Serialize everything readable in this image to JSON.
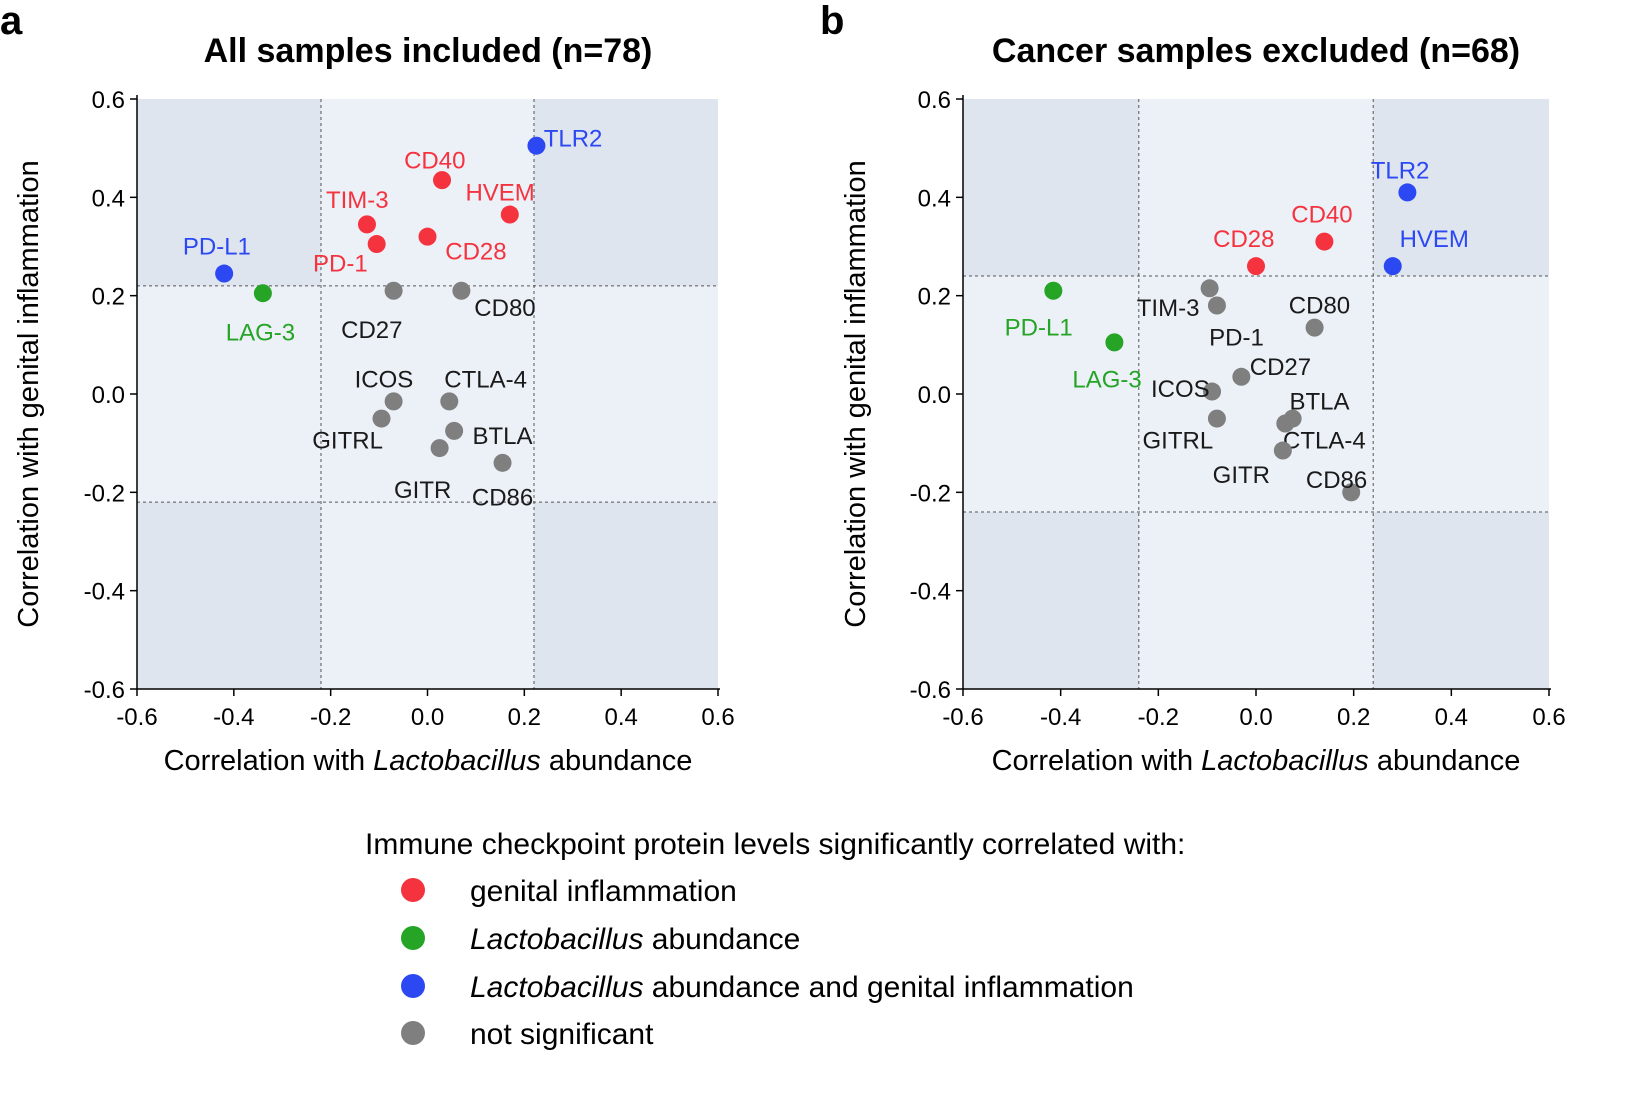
{
  "colors": {
    "red": "#f5333f",
    "green": "#25a426",
    "blue": "#2b48f3",
    "gray": "#7f7f7f",
    "black": "#1a1a1a",
    "shade_dark": "#dfe5ef",
    "shade_light": "#ecf1f8"
  },
  "chart_data": [
    {
      "type": "scatter",
      "letter": "a",
      "title": "All samples included (n=78)",
      "xlabel_pre": "Correlation with ",
      "xlabel_italic": "Lactobacillus",
      "xlabel_post": " abundance",
      "ylabel": "Correlation with genital inflammation",
      "xlim": [
        -0.6,
        0.6
      ],
      "ylim": [
        -0.6,
        0.6
      ],
      "xticks": [
        "-0.6",
        "-0.4",
        "-0.2",
        "0.0",
        "0.2",
        "0.4",
        "0.6"
      ],
      "yticks": [
        "0.6",
        "0.4",
        "0.2",
        "0.0",
        "-0.2",
        "-0.4",
        "-0.6"
      ],
      "threshold": 0.22,
      "points": [
        {
          "label": "TLR2",
          "x": 0.225,
          "y": 0.505,
          "cat": "blue",
          "lx": 0.24,
          "ly": 0.52,
          "anchor": "start"
        },
        {
          "label": "CD40",
          "x": 0.03,
          "y": 0.435,
          "cat": "red",
          "lx": 0.015,
          "ly": 0.475,
          "anchor": "middle"
        },
        {
          "label": "HVEM",
          "x": 0.17,
          "y": 0.365,
          "cat": "red",
          "lx": 0.15,
          "ly": 0.41,
          "anchor": "middle"
        },
        {
          "label": "TIM-3",
          "x": -0.125,
          "y": 0.345,
          "cat": "red",
          "lx": -0.145,
          "ly": 0.395,
          "anchor": "middle"
        },
        {
          "label": "CD28",
          "x": 0.0,
          "y": 0.32,
          "cat": "red",
          "lx": 0.1,
          "ly": 0.29,
          "anchor": "middle"
        },
        {
          "label": "PD-1",
          "x": -0.105,
          "y": 0.305,
          "cat": "red",
          "lx": -0.18,
          "ly": 0.265,
          "anchor": "middle"
        },
        {
          "label": "PD-L1",
          "x": -0.42,
          "y": 0.245,
          "cat": "blue",
          "lx": -0.435,
          "ly": 0.3,
          "anchor": "middle"
        },
        {
          "label": "LAG-3",
          "x": -0.34,
          "y": 0.205,
          "cat": "green",
          "lx": -0.345,
          "ly": 0.125,
          "anchor": "middle"
        },
        {
          "label": "CD27",
          "x": -0.07,
          "y": 0.21,
          "cat": "gray",
          "lx": -0.115,
          "ly": 0.13,
          "anchor": "middle"
        },
        {
          "label": "CD80",
          "x": 0.07,
          "y": 0.21,
          "cat": "gray",
          "lx": 0.16,
          "ly": 0.175,
          "anchor": "middle"
        },
        {
          "label": "ICOS",
          "x": -0.07,
          "y": -0.015,
          "cat": "gray",
          "lx": -0.09,
          "ly": 0.03,
          "anchor": "middle"
        },
        {
          "label": "CTLA-4",
          "x": 0.045,
          "y": -0.015,
          "cat": "gray",
          "lx": 0.12,
          "ly": 0.03,
          "anchor": "middle"
        },
        {
          "label": "GITRL",
          "x": -0.095,
          "y": -0.05,
          "cat": "gray",
          "lx": -0.165,
          "ly": -0.095,
          "anchor": "middle"
        },
        {
          "label": "BTLA",
          "x": 0.055,
          "y": -0.075,
          "cat": "gray",
          "lx": 0.155,
          "ly": -0.085,
          "anchor": "middle"
        },
        {
          "label": "GITR",
          "x": 0.025,
          "y": -0.11,
          "cat": "gray",
          "lx": -0.01,
          "ly": -0.195,
          "anchor": "middle"
        },
        {
          "label": "CD86",
          "x": 0.155,
          "y": -0.14,
          "cat": "gray",
          "lx": 0.155,
          "ly": -0.21,
          "anchor": "middle"
        }
      ]
    },
    {
      "type": "scatter",
      "letter": "b",
      "title": "Cancer samples excluded (n=68)",
      "xlabel_pre": "Correlation with ",
      "xlabel_italic": "Lactobacillus",
      "xlabel_post": " abundance",
      "ylabel": "Correlation with genital inflammation",
      "xlim": [
        -0.6,
        0.6
      ],
      "ylim": [
        -0.6,
        0.6
      ],
      "xticks": [
        "-0.6",
        "-0.4",
        "-0.2",
        "0.0",
        "0.2",
        "0.4",
        "0.6"
      ],
      "yticks": [
        "0.6",
        "0.4",
        "0.2",
        "0.0",
        "-0.2",
        "-0.4",
        "-0.6"
      ],
      "threshold": 0.24,
      "points": [
        {
          "label": "TLR2",
          "x": 0.31,
          "y": 0.41,
          "cat": "blue",
          "lx": 0.295,
          "ly": 0.455,
          "anchor": "middle"
        },
        {
          "label": "CD40",
          "x": 0.14,
          "y": 0.31,
          "cat": "red",
          "lx": 0.135,
          "ly": 0.365,
          "anchor": "middle"
        },
        {
          "label": "CD28",
          "x": 0.0,
          "y": 0.26,
          "cat": "red",
          "lx": -0.025,
          "ly": 0.315,
          "anchor": "middle"
        },
        {
          "label": "HVEM",
          "x": 0.28,
          "y": 0.26,
          "cat": "blue",
          "lx": 0.365,
          "ly": 0.315,
          "anchor": "middle"
        },
        {
          "label": "TIM-3",
          "x": -0.095,
          "y": 0.215,
          "cat": "gray",
          "lx": -0.18,
          "ly": 0.175,
          "anchor": "middle"
        },
        {
          "label": "PD-L1",
          "x": -0.415,
          "y": 0.21,
          "cat": "green",
          "lx": -0.445,
          "ly": 0.135,
          "anchor": "middle"
        },
        {
          "label": "PD-1",
          "x": -0.08,
          "y": 0.18,
          "cat": "gray",
          "lx": -0.04,
          "ly": 0.115,
          "anchor": "middle"
        },
        {
          "label": "CD80",
          "x": 0.12,
          "y": 0.135,
          "cat": "gray",
          "lx": 0.13,
          "ly": 0.18,
          "anchor": "middle"
        },
        {
          "label": "LAG-3",
          "x": -0.29,
          "y": 0.105,
          "cat": "green",
          "lx": -0.305,
          "ly": 0.03,
          "anchor": "middle"
        },
        {
          "label": "CD27",
          "x": -0.03,
          "y": 0.035,
          "cat": "gray",
          "lx": 0.05,
          "ly": 0.055,
          "anchor": "middle"
        },
        {
          "label": "ICOS",
          "x": -0.09,
          "y": 0.005,
          "cat": "gray",
          "lx": -0.155,
          "ly": 0.01,
          "anchor": "middle"
        },
        {
          "label": "BTLA",
          "x": 0.075,
          "y": -0.05,
          "cat": "gray",
          "lx": 0.13,
          "ly": -0.015,
          "anchor": "middle"
        },
        {
          "label": "GITRL",
          "x": -0.08,
          "y": -0.05,
          "cat": "gray",
          "lx": -0.16,
          "ly": -0.095,
          "anchor": "middle"
        },
        {
          "label": "CTLA-4",
          "x": 0.06,
          "y": -0.06,
          "cat": "gray",
          "lx": 0.14,
          "ly": -0.095,
          "anchor": "middle"
        },
        {
          "label": "GITR",
          "x": 0.055,
          "y": -0.115,
          "cat": "gray",
          "lx": -0.03,
          "ly": -0.165,
          "anchor": "middle"
        },
        {
          "label": "CD86",
          "x": 0.195,
          "y": -0.2,
          "cat": "gray",
          "lx": 0.165,
          "ly": -0.175,
          "anchor": "middle"
        }
      ]
    }
  ],
  "legend": {
    "title": "Immune checkpoint protein levels significantly correlated with:",
    "items": [
      {
        "cat": "red",
        "parts": [
          {
            "text": "genital inflammation",
            "italic": false
          }
        ]
      },
      {
        "cat": "green",
        "parts": [
          {
            "text": "Lactobacillus",
            "italic": true
          },
          {
            "text": " abundance",
            "italic": false
          }
        ]
      },
      {
        "cat": "blue",
        "parts": [
          {
            "text": "Lactobacillus",
            "italic": true
          },
          {
            "text": " abundance and genital inflammation",
            "italic": false
          }
        ]
      },
      {
        "cat": "gray",
        "parts": [
          {
            "text": "not significant",
            "italic": false
          }
        ]
      }
    ]
  }
}
